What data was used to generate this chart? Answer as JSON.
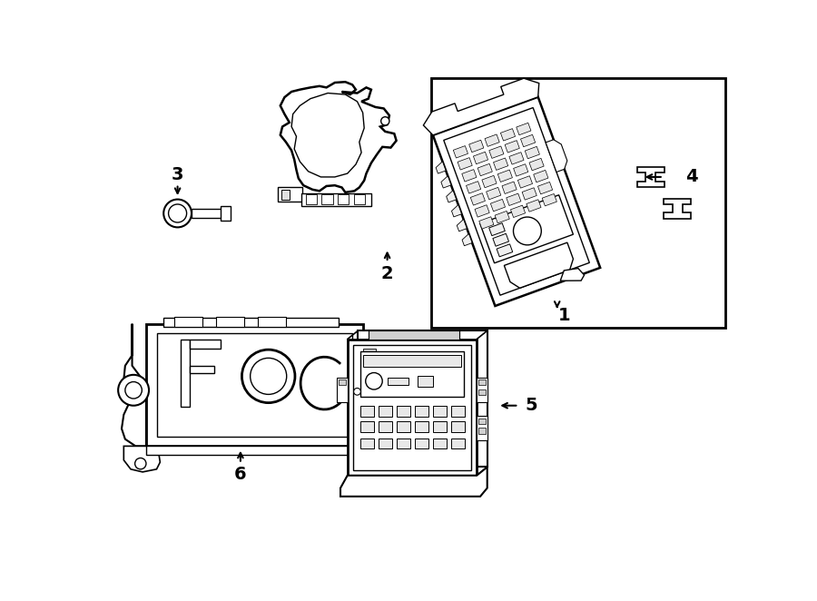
{
  "bg": "#ffffff",
  "lc": "#000000",
  "fig_w": 9.0,
  "fig_h": 6.62,
  "dpi": 100
}
